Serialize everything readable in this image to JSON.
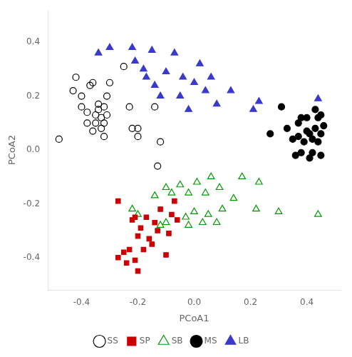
{
  "chart_data": {
    "type": "scatter",
    "xlabel": "PCoA1",
    "ylabel": "PCoA2",
    "xlim": [
      -0.52,
      0.52
    ],
    "ylim": [
      -0.52,
      0.52
    ],
    "xticks": [
      -0.4,
      -0.2,
      {
        "value": 0,
        "label": "0.0"
      },
      0.2,
      0.4
    ],
    "yticks": [
      -0.4,
      -0.2,
      {
        "value": 0,
        "label": "0.0"
      },
      0.2,
      0.4
    ],
    "grid": false,
    "legend": "bottom",
    "series": [
      {
        "name": "SS",
        "color": "black",
        "marker": "circle-open",
        "x": [
          -0.48,
          -0.43,
          -0.42,
          -0.4,
          -0.4,
          -0.38,
          -0.38,
          -0.37,
          -0.36,
          -0.36,
          -0.35,
          -0.35,
          -0.34,
          -0.34,
          -0.33,
          -0.33,
          -0.32,
          -0.32,
          -0.32,
          -0.31,
          -0.31,
          -0.3,
          -0.25,
          -0.23,
          -0.22,
          -0.2,
          -0.2,
          -0.14,
          -0.13,
          -0.12
        ],
        "y": [
          0.04,
          0.22,
          0.27,
          0.16,
          0.2,
          0.1,
          0.14,
          0.24,
          0.07,
          0.25,
          0.1,
          0.13,
          0.15,
          0.17,
          0.08,
          0.12,
          0.05,
          0.1,
          0.16,
          0.13,
          0.2,
          0.25,
          0.31,
          0.16,
          0.08,
          0.05,
          0.08,
          0.16,
          -0.06,
          0.03
        ]
      },
      {
        "name": "SP",
        "color": "#cc0000",
        "marker": "square",
        "x": [
          -0.27,
          -0.27,
          -0.25,
          -0.24,
          -0.23,
          -0.22,
          -0.21,
          -0.21,
          -0.2,
          -0.2,
          -0.19,
          -0.18,
          -0.17,
          -0.16,
          -0.15,
          -0.14,
          -0.13,
          -0.12,
          -0.1,
          -0.09,
          -0.08,
          -0.07,
          -0.06
        ],
        "y": [
          -0.19,
          -0.4,
          -0.38,
          -0.42,
          -0.37,
          -0.26,
          -0.25,
          -0.41,
          -0.32,
          -0.45,
          -0.29,
          -0.37,
          -0.25,
          -0.33,
          -0.35,
          -0.27,
          -0.3,
          -0.22,
          -0.39,
          -0.31,
          -0.24,
          -0.19,
          -0.26
        ]
      },
      {
        "name": "SB",
        "color": "#009900",
        "marker": "triangle-open",
        "x": [
          -0.22,
          -0.2,
          -0.14,
          -0.12,
          -0.1,
          -0.1,
          -0.08,
          -0.05,
          -0.03,
          -0.02,
          -0.02,
          0.0,
          0.01,
          0.03,
          0.04,
          0.05,
          0.06,
          0.08,
          0.09,
          0.1,
          0.14,
          0.17,
          0.22,
          0.23,
          0.3,
          0.44
        ],
        "y": [
          -0.22,
          -0.24,
          -0.17,
          -0.28,
          -0.14,
          -0.27,
          -0.16,
          -0.13,
          -0.25,
          -0.28,
          -0.16,
          -0.23,
          -0.12,
          -0.27,
          -0.16,
          -0.24,
          -0.1,
          -0.27,
          -0.14,
          -0.22,
          -0.18,
          -0.1,
          -0.22,
          -0.12,
          -0.23,
          -0.24
        ]
      },
      {
        "name": "MS",
        "color": "black",
        "marker": "circle",
        "x": [
          0.27,
          0.31,
          0.33,
          0.35,
          0.36,
          0.37,
          0.37,
          0.38,
          0.38,
          0.39,
          0.4,
          0.4,
          0.41,
          0.41,
          0.42,
          0.42,
          0.43,
          0.43,
          0.44,
          0.44,
          0.45,
          0.45,
          0.45,
          0.46
        ],
        "y": [
          0.06,
          0.16,
          0.08,
          0.04,
          -0.02,
          0.05,
          0.1,
          -0.01,
          0.12,
          0.03,
          0.07,
          0.12,
          -0.03,
          0.06,
          -0.01,
          0.04,
          0.08,
          0.15,
          0.03,
          0.12,
          -0.02,
          0.06,
          0.13,
          0.09
        ]
      },
      {
        "name": "LB",
        "color": "#3939cc",
        "marker": "triangle",
        "x": [
          -0.34,
          -0.3,
          -0.22,
          -0.21,
          -0.18,
          -0.17,
          -0.15,
          -0.14,
          -0.12,
          -0.1,
          -0.07,
          -0.05,
          -0.04,
          -0.02,
          0.0,
          0.02,
          0.04,
          0.06,
          0.08,
          0.13,
          0.21,
          0.23,
          0.44
        ],
        "y": [
          0.36,
          0.38,
          0.38,
          0.33,
          0.3,
          0.27,
          0.37,
          0.24,
          0.2,
          0.29,
          0.36,
          0.2,
          0.27,
          0.15,
          0.25,
          0.32,
          0.22,
          0.27,
          0.17,
          0.22,
          0.15,
          0.18,
          0.19
        ]
      }
    ]
  }
}
